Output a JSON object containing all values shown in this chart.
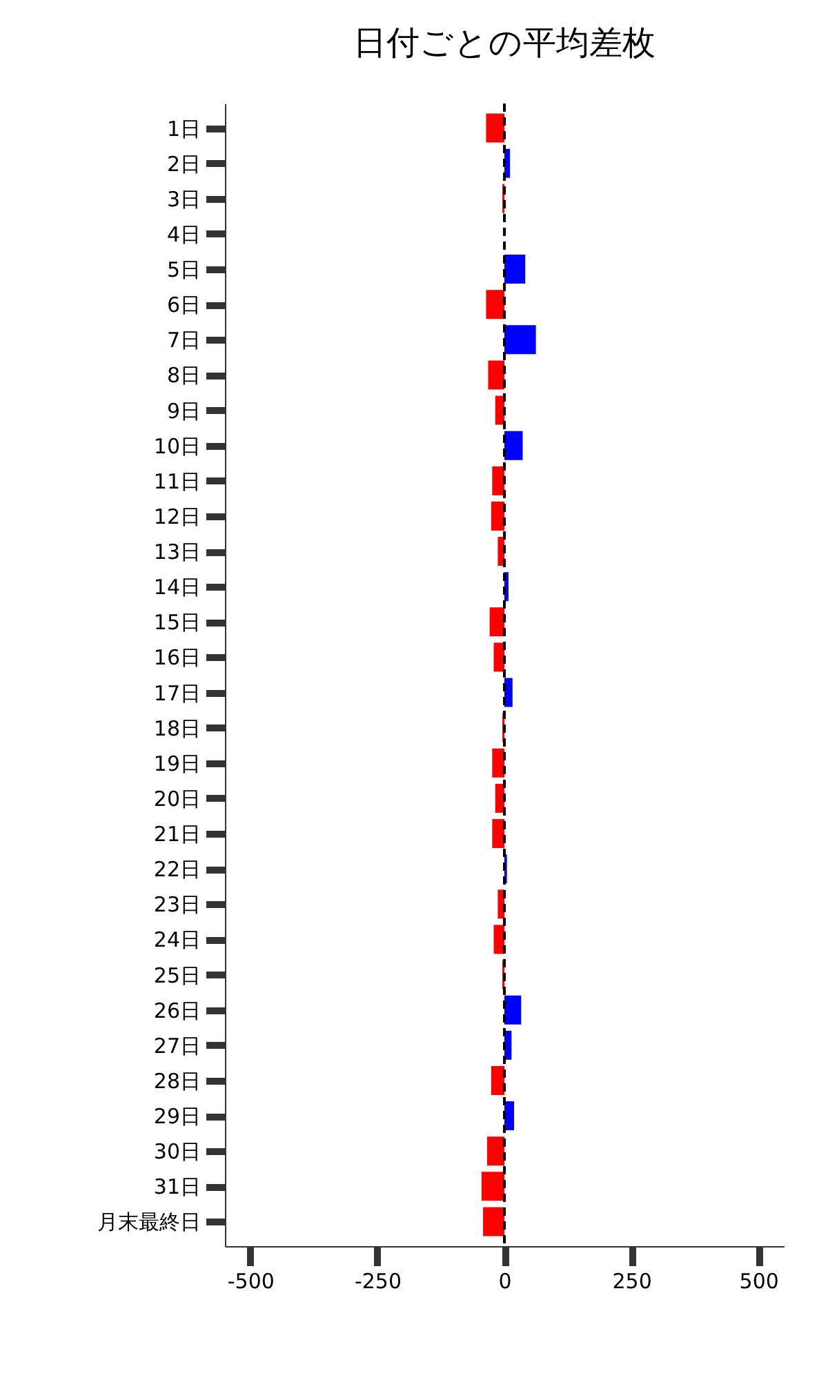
{
  "chart_data": {
    "type": "bar",
    "orientation": "horizontal",
    "title": "日付ごとの平均差枚",
    "categories": [
      "1日",
      "2日",
      "3日",
      "4日",
      "5日",
      "6日",
      "7日",
      "8日",
      "9日",
      "10日",
      "11日",
      "12日",
      "13日",
      "14日",
      "15日",
      "16日",
      "17日",
      "18日",
      "19日",
      "20日",
      "21日",
      "22日",
      "23日",
      "24日",
      "25日",
      "26日",
      "27日",
      "28日",
      "29日",
      "30日",
      "31日",
      "月末最終日"
    ],
    "values": [
      -36,
      11,
      -4,
      0,
      41,
      -36,
      62,
      -32,
      -18,
      36,
      -24,
      -26,
      -13,
      8,
      -29,
      -21,
      16,
      -4,
      -24,
      -18,
      -24,
      5,
      -13,
      -21,
      -4,
      33,
      14,
      -26,
      19,
      -34,
      -45,
      -42
    ],
    "colors": [
      "#ff0000",
      "#0000ff",
      "#ff0000",
      "#ff0000",
      "#0000ff",
      "#ff0000",
      "#0000ff",
      "#ff0000",
      "#ff0000",
      "#0000ff",
      "#ff0000",
      "#ff0000",
      "#ff0000",
      "#0000ff",
      "#ff0000",
      "#ff0000",
      "#0000ff",
      "#ff0000",
      "#ff0000",
      "#ff0000",
      "#ff0000",
      "#0000ff",
      "#ff0000",
      "#ff0000",
      "#ff0000",
      "#0000ff",
      "#0000ff",
      "#ff0000",
      "#0000ff",
      "#ff0000",
      "#ff0000",
      "#ff0000"
    ],
    "xlim": [
      -550,
      550
    ],
    "xticks": [
      -500,
      -250,
      0,
      250,
      500
    ],
    "ref_lines": [
      {
        "axis": "x",
        "value": 0,
        "color": "#000000",
        "line_style": "dashed"
      }
    ],
    "grid": false
  }
}
